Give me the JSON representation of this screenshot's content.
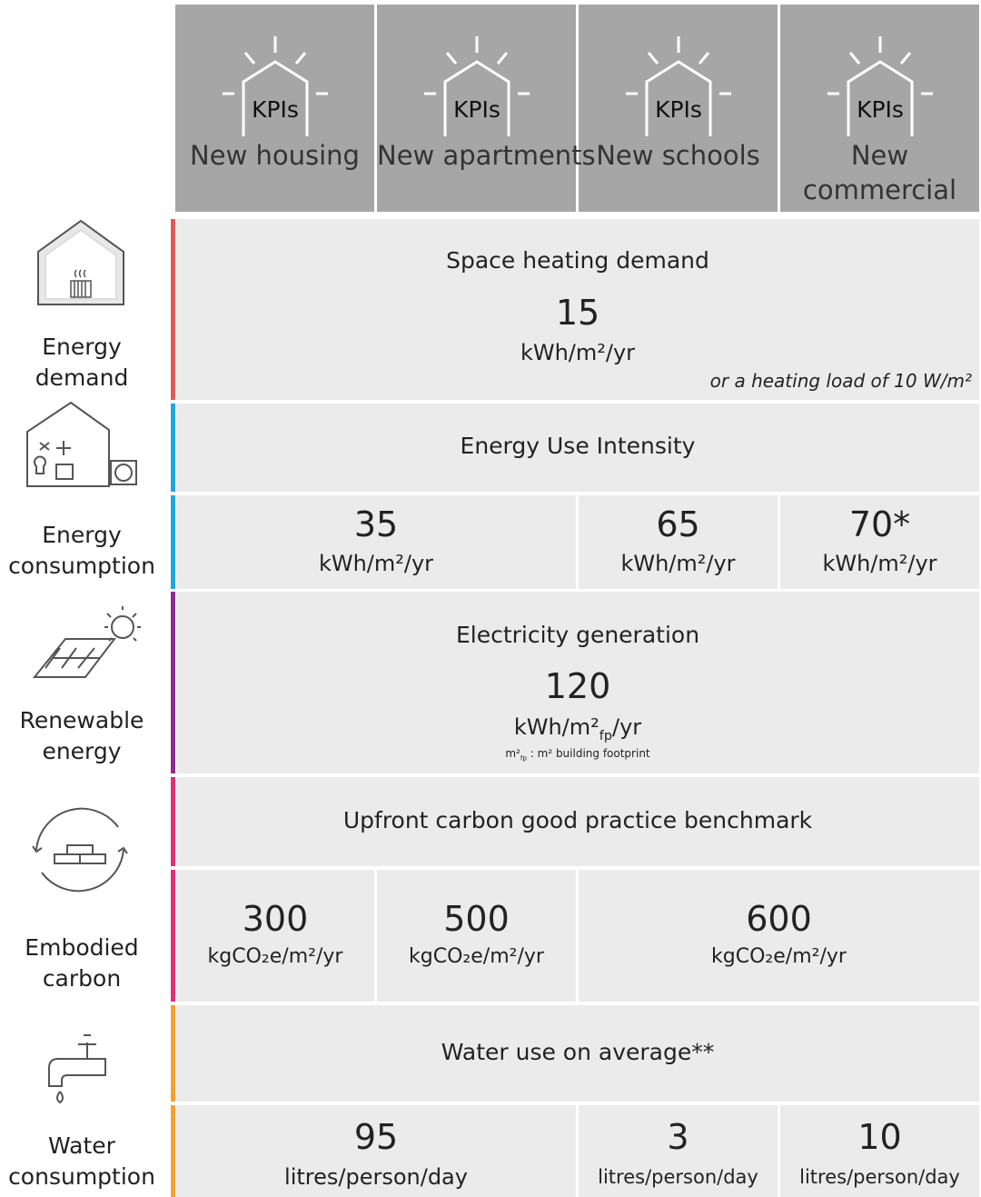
{
  "header": {
    "columns": [
      {
        "badge": "KPIs",
        "label": "New housing"
      },
      {
        "badge": "KPIs",
        "label": "New apartments"
      },
      {
        "badge": "KPIs",
        "label": "New schools"
      },
      {
        "badge": "KPIs",
        "label": "New commercial"
      }
    ]
  },
  "energy_demand": {
    "label": "Energy demand",
    "metric": "Space heating demand",
    "value": 15,
    "unit": "kWh/m²/yr",
    "note": "or a heating load of 10 W/m²"
  },
  "energy_consumption": {
    "label": "Energy consumption",
    "metric": "Energy Use Intensity",
    "cells": [
      {
        "value": 35,
        "unit": "kWh/m²/yr"
      },
      {
        "value": 65,
        "unit": "kWh/m²/yr"
      },
      {
        "value": "70*",
        "unit": "kWh/m²/yr"
      }
    ]
  },
  "renewable_energy": {
    "label": "Renewable energy",
    "metric": "Electricity generation",
    "value": 120,
    "unit": "kWh/m²",
    "unit_sub": "fp",
    "unit_rest": "/yr",
    "footnote": "m²",
    "footnote_sub": "fp",
    "footnote_rest": " : m² building footprint"
  },
  "embodied_carbon": {
    "label": "Embodied carbon",
    "metric": "Upfront carbon good practice benchmark",
    "cells": [
      {
        "value": 300,
        "unit": "kgCO₂e/m²/yr"
      },
      {
        "value": 500,
        "unit": "kgCO₂e/m²/yr"
      },
      {
        "value": 600,
        "unit": "kgCO₂e/m²/yr"
      }
    ]
  },
  "water_consumption": {
    "label": "Water consumption",
    "metric": "Water use on average**",
    "cells": [
      {
        "value": 95,
        "unit": "litres/person/day"
      },
      {
        "value": 3,
        "unit": "litres/person/day"
      },
      {
        "value": 10,
        "unit": "litres/person/day"
      }
    ]
  }
}
